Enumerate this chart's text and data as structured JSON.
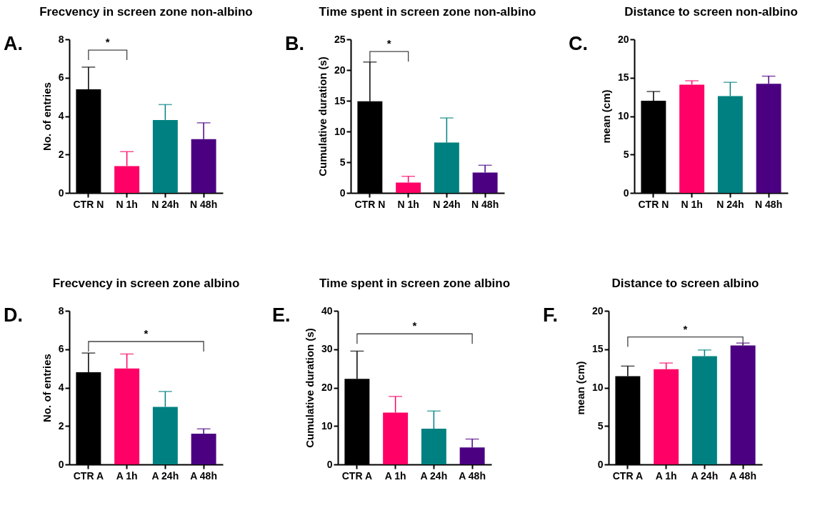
{
  "chart_data": [
    {
      "type": "bar",
      "title": "Frecvency in screen zone non-albino",
      "ylabel": "No. of entries",
      "categories": [
        "CTR N",
        "N 1h",
        "N 24h",
        "N 48h"
      ],
      "values": [
        5.4,
        1.4,
        3.8,
        2.8
      ],
      "errors": [
        [
          5.4,
          6.55
        ],
        [
          1.4,
          2.15
        ],
        [
          3.8,
          4.6
        ],
        [
          2.8,
          3.65
        ]
      ],
      "colors": [
        "#000000",
        "#ff0066",
        "#008080",
        "#4b0082"
      ],
      "ylim": [
        0,
        8
      ],
      "yticks": [
        0,
        2,
        4,
        6,
        8
      ],
      "annotations": [
        "A.",
        "*"
      ]
    },
    {
      "type": "bar",
      "title": "Time spent in screen zone non-albino",
      "ylabel": "Cumulative duration (s)",
      "categories": [
        "CTR N",
        "N 1h",
        "N 24h",
        "N 48h"
      ],
      "values": [
        14.9,
        1.7,
        8.2,
        3.3
      ],
      "errors": [
        [
          14.9,
          21.3
        ],
        [
          1.7,
          2.7
        ],
        [
          8.2,
          12.2
        ],
        [
          3.3,
          4.5
        ]
      ],
      "colors": [
        "#000000",
        "#ff0066",
        "#008080",
        "#4b0082"
      ],
      "ylim": [
        0,
        25
      ],
      "yticks": [
        0,
        5,
        10,
        15,
        20,
        25
      ],
      "annotations": [
        "B.",
        "*"
      ]
    },
    {
      "type": "bar",
      "title": "Distance to screen non-albino",
      "ylabel": "mean (cm)",
      "categories": [
        "CTR N",
        "N 1h",
        "N 24h",
        "N 48h"
      ],
      "values": [
        12.0,
        14.1,
        12.6,
        14.2
      ],
      "errors": [
        [
          12.0,
          13.2
        ],
        [
          14.1,
          14.6
        ],
        [
          12.6,
          14.4
        ],
        [
          14.2,
          15.2
        ]
      ],
      "colors": [
        "#000000",
        "#ff0066",
        "#008080",
        "#4b0082"
      ],
      "ylim": [
        0,
        20
      ],
      "yticks": [
        0,
        5,
        10,
        15,
        20
      ],
      "annotations": [
        "C."
      ]
    },
    {
      "type": "bar",
      "title": "Frecvency in screen zone albino",
      "ylabel": "No. of entries",
      "categories": [
        "CTR A",
        "A 1h",
        "A 24h",
        "A 48h"
      ],
      "values": [
        4.8,
        5.0,
        3.0,
        1.6
      ],
      "errors": [
        [
          4.8,
          5.8
        ],
        [
          5.0,
          5.75
        ],
        [
          3.0,
          3.8
        ],
        [
          1.6,
          1.85
        ]
      ],
      "colors": [
        "#000000",
        "#ff0066",
        "#008080",
        "#4b0082"
      ],
      "ylim": [
        0,
        8
      ],
      "yticks": [
        0,
        2,
        4,
        6,
        8
      ],
      "annotations": [
        "D.",
        "*"
      ]
    },
    {
      "type": "bar",
      "title": "Time spent in screen zone albino",
      "ylabel": "Cumulative duration (s)",
      "categories": [
        "CTR A",
        "A 1h",
        "A 24h",
        "A 48h"
      ],
      "values": [
        22.3,
        13.5,
        9.3,
        4.4
      ],
      "errors": [
        [
          22.3,
          29.5
        ],
        [
          13.5,
          17.7
        ],
        [
          9.3,
          13.9
        ],
        [
          4.4,
          6.6
        ]
      ],
      "colors": [
        "#000000",
        "#ff0066",
        "#008080",
        "#4b0082"
      ],
      "ylim": [
        0,
        40
      ],
      "yticks": [
        0,
        10,
        20,
        30,
        40
      ],
      "annotations": [
        "E.",
        "*"
      ]
    },
    {
      "type": "bar",
      "title": "Distance to screen albino",
      "ylabel": "mean (cm)",
      "categories": [
        "CTR A",
        "A 1h",
        "A 24h",
        "A 48h"
      ],
      "values": [
        11.5,
        12.4,
        14.1,
        15.5
      ],
      "errors": [
        [
          11.5,
          12.8
        ],
        [
          12.4,
          13.2
        ],
        [
          14.1,
          14.9
        ],
        [
          15.5,
          15.8
        ]
      ],
      "colors": [
        "#000000",
        "#ff0066",
        "#008080",
        "#4b0082"
      ],
      "ylim": [
        0,
        20
      ],
      "yticks": [
        0,
        5,
        10,
        15,
        20
      ],
      "annotations": [
        "F.",
        "*"
      ]
    }
  ]
}
